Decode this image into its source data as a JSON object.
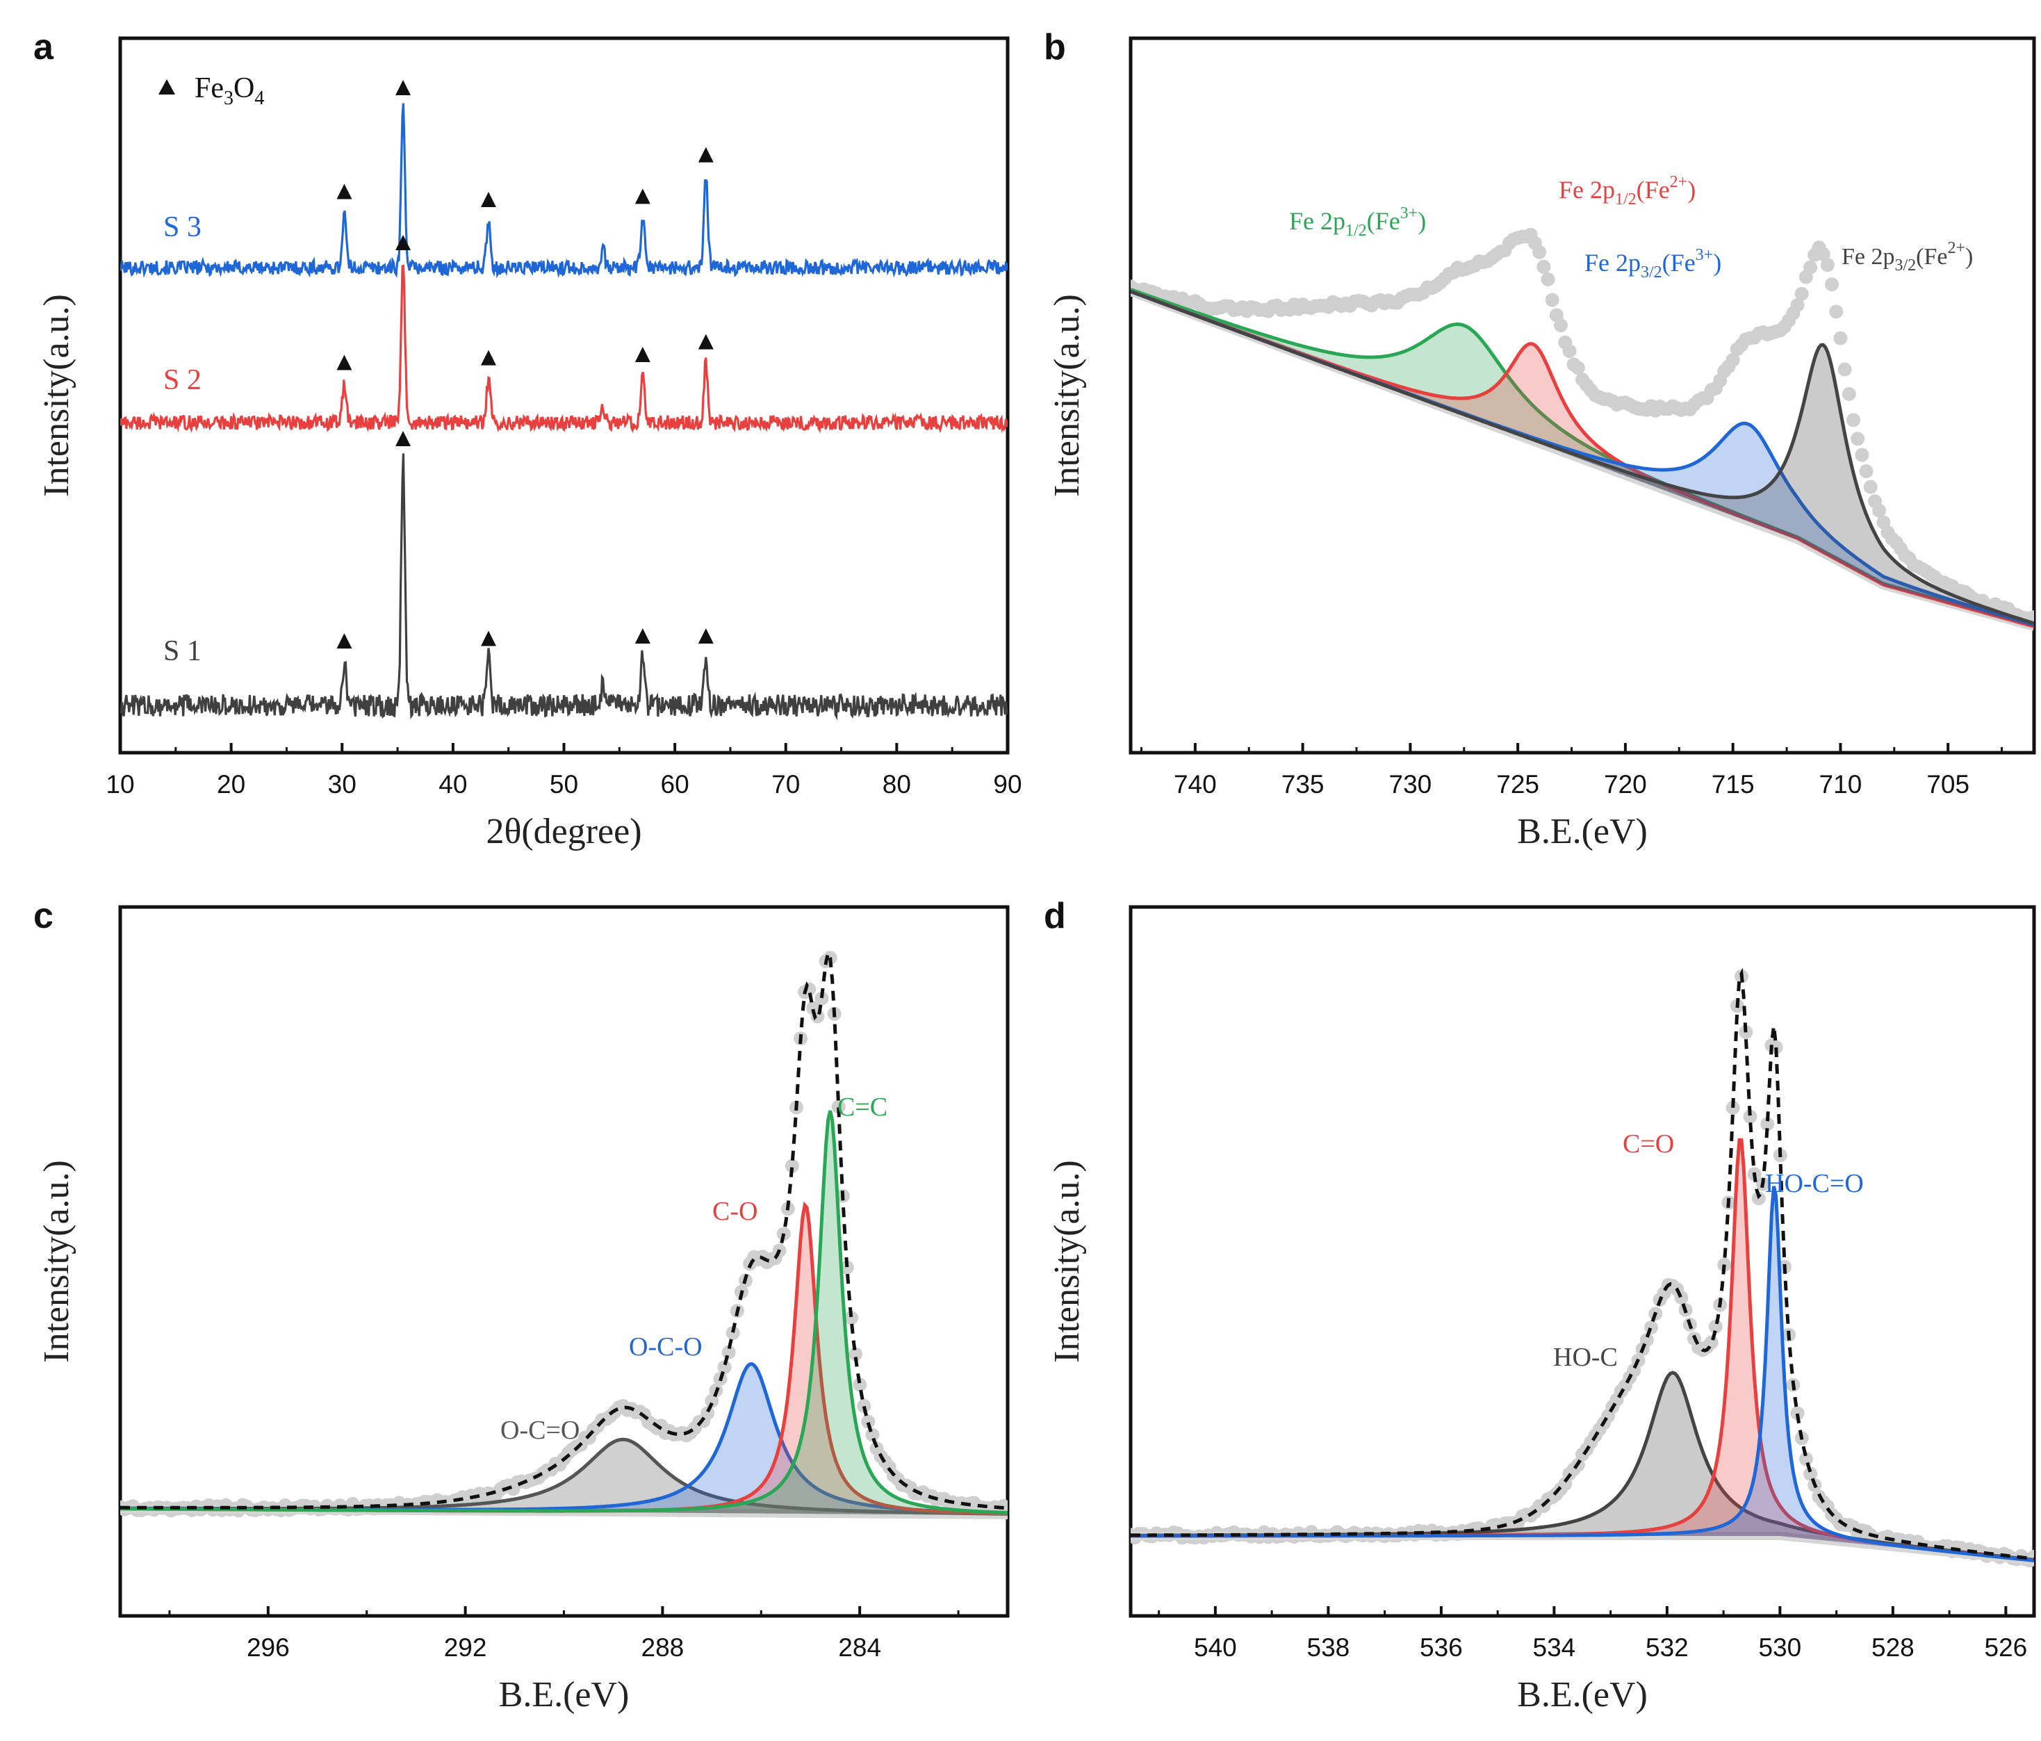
{
  "chart_data": [
    {
      "panel": "a",
      "type": "line",
      "xlabel": "2θ(degree)",
      "ylabel": "Intensity(a.u.)",
      "xlim": [
        10,
        90
      ],
      "xticks": [
        "10",
        "20",
        "30",
        "40",
        "50",
        "60",
        "70",
        "80",
        "90"
      ],
      "legend": {
        "marker": "▲",
        "label": "Fe",
        "sub1": "3",
        "mid": "O",
        "sub2": "4"
      },
      "peaks_2theta": [
        30.2,
        35.5,
        43.2,
        53.5,
        57.1,
        62.8
      ],
      "marked_peaks": [
        30.2,
        35.5,
        43.2,
        57.1,
        62.8
      ],
      "series": [
        {
          "name": "S 3",
          "color": "#1f66d6",
          "peak_heights": [
            0.35,
            1.0,
            0.3,
            0.12,
            0.32,
            0.58
          ]
        },
        {
          "name": "S 2",
          "color": "#e8403f",
          "peak_heights": [
            0.25,
            1.0,
            0.28,
            0.1,
            0.3,
            0.38
          ]
        },
        {
          "name": "S 1",
          "color": "#404040",
          "peak_heights": [
            0.18,
            1.0,
            0.19,
            0.08,
            0.2,
            0.2
          ]
        }
      ]
    },
    {
      "panel": "b",
      "type": "line",
      "xlabel": "B.E.(eV)",
      "ylabel": "Intensity(a.u.)",
      "xlim": [
        743,
        701
      ],
      "xticks": [
        "740",
        "735",
        "730",
        "725",
        "720",
        "715",
        "710",
        "705"
      ],
      "components": [
        {
          "label": "Fe 2p",
          "sub": "1/2",
          "ion": "Fe",
          "sup": "3+",
          "color": "#2aa755",
          "center": 727.5
        },
        {
          "label": "Fe 2p",
          "sub": "1/2",
          "ion": "Fe",
          "sup": "2+",
          "color": "#e8403f",
          "center": 724.3
        },
        {
          "label": "Fe 2p",
          "sub": "3/2",
          "ion": "Fe",
          "sup": "3+",
          "color": "#1f66d6",
          "center": 714.3
        },
        {
          "label": "Fe 2p",
          "sub": "3/2",
          "ion": "Fe",
          "sup": "2+",
          "color": "#444444",
          "center": 710.8
        }
      ]
    },
    {
      "panel": "c",
      "type": "line",
      "xlabel": "B.E.(eV)",
      "ylabel": "Intensity(a.u.)",
      "xlim": [
        299,
        281
      ],
      "xticks": [
        "296",
        "292",
        "288",
        "284"
      ],
      "components": [
        {
          "label": "O-C=O",
          "color": "#555555",
          "center": 288.8
        },
        {
          "label": "O-C-O",
          "color": "#1f66d6",
          "center": 286.2
        },
        {
          "label": "C-O",
          "color": "#e8403f",
          "center": 285.1
        },
        {
          "label": "C=C",
          "color": "#2aa755",
          "center": 284.6
        }
      ]
    },
    {
      "panel": "d",
      "type": "line",
      "xlabel": "B.E.(eV)",
      "ylabel": "Intensity(a.u.)",
      "xlim": [
        541.5,
        525.5
      ],
      "xticks": [
        "540",
        "538",
        "536",
        "534",
        "532",
        "530",
        "528",
        "526"
      ],
      "components": [
        {
          "label": "HO-C",
          "color": "#444444",
          "center": 531.9
        },
        {
          "label": "C=O",
          "color": "#e8403f",
          "center": 530.7
        },
        {
          "label": "HO-C=O",
          "color": "#1f66d6",
          "center": 530.1
        }
      ]
    }
  ]
}
